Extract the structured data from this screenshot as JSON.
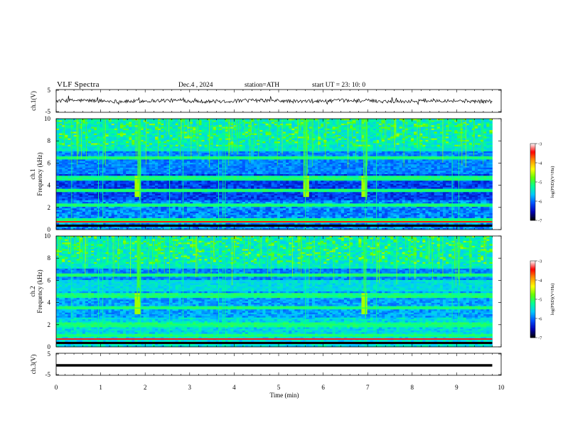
{
  "header": {
    "title": "VLF  Spectra",
    "date": "Dec.4  , 2024",
    "station": "station=ATH",
    "start": "start  UT  =   23: 10: 0"
  },
  "colors": {
    "trace": "#000000",
    "colormap": [
      "#000000",
      "#0000b4",
      "#0050ff",
      "#00c8ff",
      "#00ff96",
      "#64ff00",
      "#ffff00",
      "#ff9600",
      "#ff0000",
      "#ffffff"
    ]
  },
  "colorbar": {
    "label": "log(PSD)(V²/Hz)",
    "ticks": [
      "-3",
      "-4",
      "-5",
      "-6",
      "-7"
    ],
    "range": [
      -7,
      -3
    ]
  },
  "chart_data": [
    {
      "type": "line",
      "panel": "ch1-waveform",
      "ylabel": "ch.1(V)",
      "ylim": [
        -5,
        5
      ],
      "ytick_labels": [
        "5",
        "-5"
      ],
      "x_range_min": [
        0,
        9.8
      ],
      "description_values": "continuous noisy waveform centred near 0 V"
    },
    {
      "type": "heatmap",
      "panel": "ch1-spectrogram",
      "ylabel": "ch.1\nFrequency  (kHz)",
      "ylim": [
        0,
        10
      ],
      "ytick_labels": [
        "10",
        "8",
        "6",
        "4",
        "2",
        "0"
      ],
      "x_range_min": [
        0,
        9.8
      ],
      "bright_events_min": [
        1.85,
        5.6,
        6.95
      ],
      "band_khz": [
        0.8,
        2.2,
        3.5,
        4.6,
        6.5
      ],
      "impulsive_columns_min": [
        0.35,
        0.95,
        1.05,
        1.9,
        2.55,
        2.85,
        3.65,
        3.75,
        3.8,
        5.6,
        6.95,
        7.2,
        8.9,
        9.05
      ]
    },
    {
      "type": "heatmap",
      "panel": "ch2-spectrogram",
      "ylabel": "ch.2\nFrequency  (kHz)",
      "ylim": [
        0,
        10
      ],
      "ytick_labels": [
        "10",
        "8",
        "6",
        "4",
        "2",
        "0"
      ],
      "x_range_min": [
        0,
        9.8
      ],
      "bright_events_min": [
        1.85,
        6.95
      ],
      "band_khz": [
        1.0,
        2.0,
        3.5,
        4.6,
        6.5
      ],
      "impulsive_columns_min": [
        0.35,
        0.95,
        1.05,
        1.9,
        2.55,
        2.85,
        3.65,
        3.75,
        3.8,
        5.6,
        6.95,
        7.2,
        8.9,
        9.05
      ]
    },
    {
      "type": "line",
      "panel": "ch3-waveform",
      "ylabel": "ch.3(V)",
      "ylim": [
        -5,
        5
      ],
      "ytick_labels": [
        "5",
        "-5"
      ],
      "x_range_min": [
        0,
        9.8
      ],
      "constant_value": -0.5
    }
  ],
  "xaxis": {
    "label": "Time  (min)",
    "lim": [
      0,
      10
    ],
    "ticks": [
      "0",
      "1",
      "2",
      "3",
      "4",
      "5",
      "6",
      "7",
      "8",
      "9",
      "10"
    ]
  }
}
